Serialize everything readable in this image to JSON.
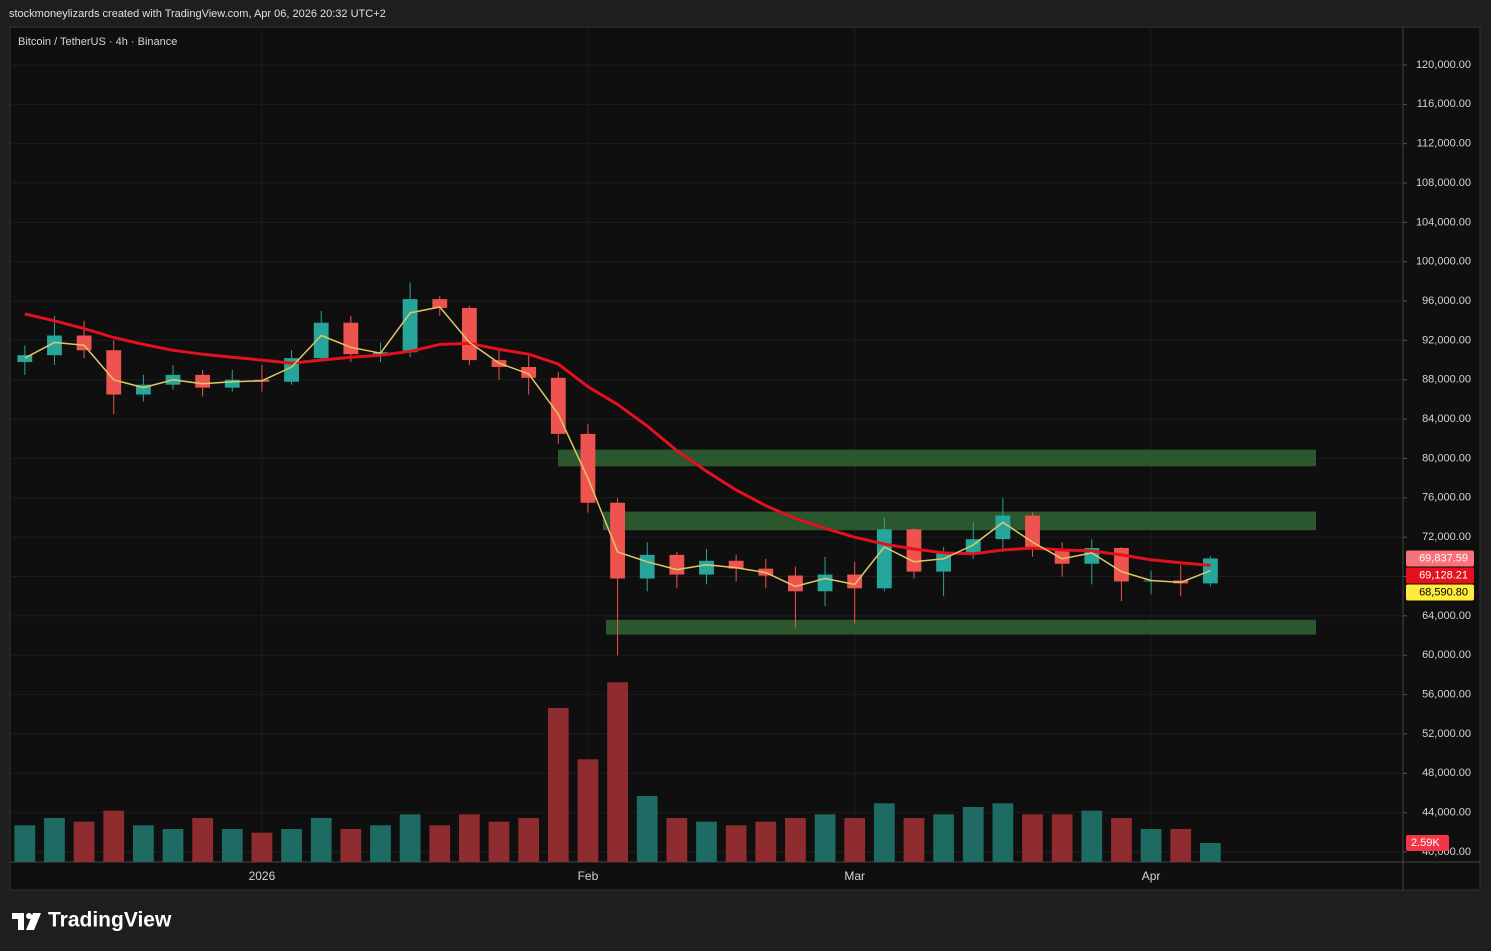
{
  "header": {
    "attribution": "stockmoneylizards created with TradingView.com, Apr 06, 2026 20:32 UTC+2",
    "footer": "TradingView"
  },
  "chart_data": {
    "type": "candlestick",
    "title": "Bitcoin / TetherUS · 4h · Binance",
    "categories": [
      null,
      null,
      null,
      null,
      null,
      null,
      null,
      null,
      "2026",
      null,
      null,
      null,
      null,
      null,
      null,
      null,
      null,
      null,
      null,
      "Feb",
      null,
      null,
      null,
      null,
      null,
      null,
      null,
      null,
      "Mar",
      null,
      null,
      null,
      null,
      null,
      null,
      null,
      null,
      null,
      "Apr",
      null,
      null,
      null,
      null,
      null,
      null,
      null,
      null
    ],
    "open": [
      89800,
      90500,
      92500,
      91000,
      86500,
      87500,
      88500,
      87200,
      88000,
      87800,
      90200,
      93800,
      90600,
      90800,
      96200,
      95300,
      90000,
      89300,
      88200,
      82500,
      75500,
      67800,
      70200,
      68200,
      69600,
      68800,
      68100,
      66500,
      68200,
      66800,
      72800,
      68500,
      70400,
      71800,
      74200,
      70800,
      69300,
      70900,
      67500,
      67600,
      67300,
      null,
      null,
      null,
      null,
      null,
      null
    ],
    "high": [
      91500,
      94500,
      94000,
      92000,
      88500,
      89500,
      89000,
      89000,
      89500,
      91000,
      95000,
      94500,
      91800,
      97900,
      96500,
      95500,
      91000,
      90500,
      88800,
      83500,
      76000,
      71500,
      70500,
      70800,
      70200,
      69800,
      69000,
      70000,
      69500,
      74000,
      73000,
      71000,
      73500,
      76000,
      74500,
      71500,
      71800,
      71000,
      68600,
      69200,
      70100,
      null,
      null,
      null,
      null,
      null,
      null
    ],
    "low": [
      88500,
      89500,
      90200,
      84500,
      85800,
      87000,
      86300,
      86800,
      86800,
      87500,
      90000,
      89800,
      89800,
      90300,
      94500,
      89500,
      88000,
      86500,
      81500,
      74500,
      60000,
      66500,
      66800,
      67200,
      67500,
      66800,
      62800,
      65000,
      63200,
      66500,
      67800,
      66000,
      69800,
      70500,
      70000,
      68000,
      67200,
      65500,
      66200,
      66000,
      67000,
      null,
      null,
      null,
      null,
      null,
      null
    ],
    "close": [
      90500,
      92500,
      91000,
      86500,
      87500,
      88500,
      87200,
      88000,
      87800,
      90200,
      93800,
      90600,
      90800,
      96200,
      95300,
      90000,
      89300,
      88200,
      82500,
      75500,
      67800,
      70200,
      68200,
      69600,
      68800,
      68100,
      66500,
      68200,
      66800,
      72800,
      68500,
      70400,
      71800,
      74200,
      70800,
      69300,
      70900,
      67500,
      67600,
      67300,
      69838,
      null,
      null,
      null,
      null,
      null,
      null
    ],
    "up_color": "#26a69a",
    "down_color": "#ef5350",
    "lines": [
      {
        "color": "#e3101d",
        "values": [
          94700,
          94000,
          93200,
          92300,
          91600,
          91000,
          90600,
          90300,
          90000,
          89700,
          90000,
          90300,
          90500,
          90900,
          91600,
          91700,
          91100,
          90600,
          89600,
          87300,
          85500,
          83300,
          80800,
          78700,
          76800,
          75200,
          73900,
          72900,
          72000,
          71300,
          70800,
          70400,
          70300,
          70700,
          70900,
          70700,
          70600,
          70200,
          69700,
          69400,
          69128.21,
          null,
          null,
          null,
          null,
          null,
          null
        ]
      },
      {
        "color": "#e0c766",
        "values": [
          90200,
          91800,
          91500,
          88000,
          87200,
          88000,
          87600,
          87800,
          87900,
          89300,
          92500,
          91300,
          90700,
          94800,
          95400,
          91800,
          89700,
          88600,
          84500,
          78000,
          70500,
          69500,
          68700,
          69200,
          68900,
          68400,
          67000,
          67800,
          67200,
          71000,
          69500,
          69800,
          71200,
          73500,
          71500,
          69800,
          70400,
          68500,
          67600,
          67400,
          68590.8,
          null,
          null,
          null,
          null,
          null,
          null
        ]
      }
    ],
    "volume": {
      "values": [
        5000,
        6000,
        5500,
        7000,
        5000,
        4500,
        6000,
        4500,
        4000,
        4500,
        6000,
        4500,
        5000,
        6500,
        5000,
        6500,
        5500,
        6000,
        21000,
        14000,
        24500,
        9000,
        6000,
        5500,
        5000,
        5500,
        6000,
        6500,
        6000,
        8000,
        6000,
        6500,
        7500,
        8000,
        6500,
        6500,
        7000,
        6000,
        4500,
        4500,
        2590,
        null,
        null,
        null,
        null,
        null,
        null
      ],
      "ylim": [
        0,
        113700
      ],
      "up_color": "#1d6b63",
      "down_color": "#8e2c2f",
      "badge": {
        "value": 2590,
        "label": "2.59K",
        "color": "#f23645"
      }
    },
    "ylim": [
      38980,
      123760
    ],
    "yticks": [
      {
        "value": 40000,
        "label": "40,000.00"
      },
      {
        "value": 44000,
        "label": "44,000.00"
      },
      {
        "value": 48000,
        "label": "48,000.00"
      },
      {
        "value": 52000,
        "label": "52,000.00"
      },
      {
        "value": 56000,
        "label": "56,000.00"
      },
      {
        "value": 60000,
        "label": "60,000.00"
      },
      {
        "value": 64000,
        "label": "64,000.00"
      },
      {
        "value": 68000,
        "label": "68,000.00"
      },
      {
        "value": 72000,
        "label": "72,000.00"
      },
      {
        "value": 76000,
        "label": "76,000.00"
      },
      {
        "value": 80000,
        "label": "80,000.00"
      },
      {
        "value": 84000,
        "label": "84,000.00"
      },
      {
        "value": 88000,
        "label": "88,000.00"
      },
      {
        "value": 92000,
        "label": "92,000.00"
      },
      {
        "value": 96000,
        "label": "96,000.00"
      },
      {
        "value": 100000,
        "label": "100,000.00"
      },
      {
        "value": 104000,
        "label": "104,000.00"
      },
      {
        "value": 108000,
        "label": "108,000.00"
      },
      {
        "value": 112000,
        "label": "112,000.00"
      },
      {
        "value": 116000,
        "label": "116,000.00"
      },
      {
        "value": 120000,
        "label": "120,000.00"
      }
    ],
    "grid": true,
    "zones": [
      {
        "low": 79200,
        "high": 80900,
        "color": "#2e5f32"
      },
      {
        "low": 72700,
        "high": 74600,
        "color": "#2e5f32"
      },
      {
        "low": 62100,
        "high": 63600,
        "color": "#2e5f32"
      }
    ],
    "price_badges": [
      {
        "value": 69837.59,
        "label": "69,837.59",
        "color": "#f7727a",
        "text_color": "#ffffff"
      },
      {
        "value": 69128.21,
        "label": "69,128.21",
        "color": "#e3101d",
        "text_color": "#ffffff"
      },
      {
        "value": 68590.8,
        "label": "68,590.80",
        "color": "#ffeb3b",
        "text_color": "#000000"
      }
    ]
  }
}
